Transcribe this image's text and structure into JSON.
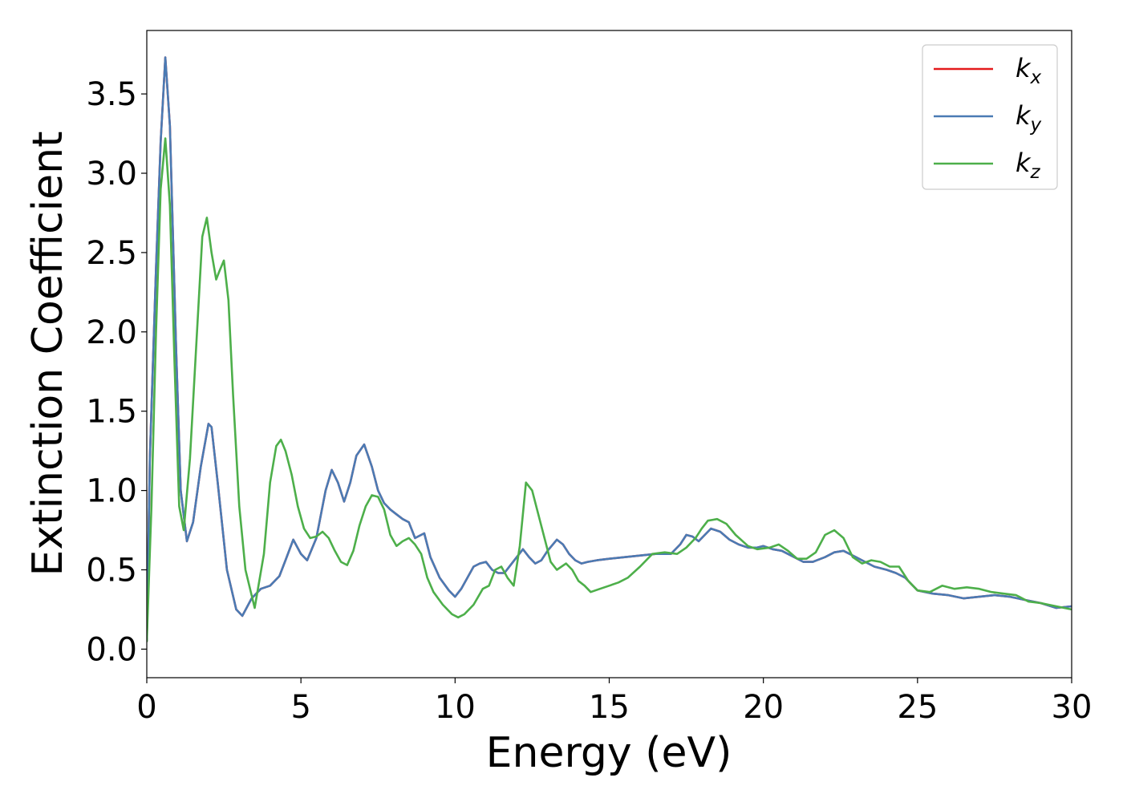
{
  "chart_data": {
    "type": "line",
    "xlabel": "Energy (eV)",
    "ylabel": "Extinction Coefficient",
    "xlim": [
      0,
      30
    ],
    "ylim": [
      -0.18,
      3.9
    ],
    "xticks": [
      0,
      5,
      10,
      15,
      20,
      25,
      30
    ],
    "xtick_labels": [
      "0",
      "5",
      "10",
      "15",
      "20",
      "25",
      "30"
    ],
    "yticks": [
      0.0,
      0.5,
      1.0,
      1.5,
      2.0,
      2.5,
      3.0,
      3.5
    ],
    "ytick_labels": [
      "0.0",
      "0.5",
      "1.0",
      "1.5",
      "2.0",
      "2.5",
      "3.0",
      "3.5"
    ],
    "grid": false,
    "legend_position": "top-right",
    "series": [
      {
        "name": "k_x",
        "label_base": "k",
        "label_sub": "x",
        "color": "#e41a1c",
        "x": [
          0.0,
          0.1,
          0.3,
          0.45,
          0.6,
          0.75,
          0.95,
          1.1,
          1.3,
          1.5,
          1.75,
          2.0,
          2.1,
          2.3,
          2.6,
          2.9,
          3.1,
          3.4,
          3.7,
          4.0,
          4.3,
          4.5,
          4.75,
          5.0,
          5.2,
          5.5,
          5.8,
          6.0,
          6.2,
          6.4,
          6.6,
          6.8,
          7.05,
          7.3,
          7.5,
          7.7,
          7.9,
          8.1,
          8.3,
          8.5,
          8.7,
          9.0,
          9.2,
          9.5,
          9.8,
          10.0,
          10.2,
          10.4,
          10.6,
          10.8,
          11.0,
          11.2,
          11.4,
          11.6,
          11.8,
          12.0,
          12.2,
          12.4,
          12.6,
          12.8,
          13.0,
          13.3,
          13.5,
          13.7,
          13.9,
          14.1,
          14.3,
          14.6,
          15.0,
          15.5,
          16.0,
          16.5,
          17.0,
          17.3,
          17.5,
          17.7,
          17.9,
          18.1,
          18.3,
          18.6,
          18.9,
          19.2,
          19.5,
          19.8,
          20.0,
          20.3,
          20.6,
          21.0,
          21.3,
          21.6,
          22.0,
          22.3,
          22.6,
          23.0,
          23.3,
          23.6,
          24.0,
          24.3,
          24.6,
          25.0,
          25.5,
          26.0,
          26.5,
          27.0,
          27.5,
          28.0,
          28.5,
          29.0,
          29.5,
          30.0
        ],
        "y": [
          0.05,
          1.2,
          2.4,
          3.2,
          3.73,
          3.3,
          1.9,
          1.0,
          0.68,
          0.8,
          1.15,
          1.42,
          1.4,
          1.05,
          0.5,
          0.25,
          0.21,
          0.32,
          0.38,
          0.4,
          0.46,
          0.56,
          0.69,
          0.6,
          0.56,
          0.7,
          1.0,
          1.13,
          1.05,
          0.93,
          1.05,
          1.22,
          1.29,
          1.15,
          1.0,
          0.92,
          0.88,
          0.85,
          0.82,
          0.8,
          0.7,
          0.73,
          0.58,
          0.45,
          0.37,
          0.33,
          0.38,
          0.45,
          0.52,
          0.54,
          0.55,
          0.5,
          0.48,
          0.48,
          0.53,
          0.58,
          0.63,
          0.58,
          0.54,
          0.56,
          0.62,
          0.69,
          0.66,
          0.6,
          0.56,
          0.54,
          0.55,
          0.56,
          0.57,
          0.58,
          0.59,
          0.6,
          0.6,
          0.66,
          0.72,
          0.71,
          0.68,
          0.72,
          0.76,
          0.74,
          0.69,
          0.66,
          0.64,
          0.64,
          0.65,
          0.63,
          0.62,
          0.58,
          0.55,
          0.55,
          0.58,
          0.61,
          0.62,
          0.58,
          0.55,
          0.52,
          0.5,
          0.48,
          0.45,
          0.37,
          0.35,
          0.34,
          0.32,
          0.33,
          0.34,
          0.33,
          0.31,
          0.29,
          0.26,
          0.27
        ]
      },
      {
        "name": "k_y",
        "label_base": "k",
        "label_sub": "y",
        "color": "#4a7bb4",
        "x": [
          0.0,
          0.1,
          0.3,
          0.45,
          0.6,
          0.75,
          0.95,
          1.1,
          1.3,
          1.5,
          1.75,
          2.0,
          2.1,
          2.3,
          2.6,
          2.9,
          3.1,
          3.4,
          3.7,
          4.0,
          4.3,
          4.5,
          4.75,
          5.0,
          5.2,
          5.5,
          5.8,
          6.0,
          6.2,
          6.4,
          6.6,
          6.8,
          7.05,
          7.3,
          7.5,
          7.7,
          7.9,
          8.1,
          8.3,
          8.5,
          8.7,
          9.0,
          9.2,
          9.5,
          9.8,
          10.0,
          10.2,
          10.4,
          10.6,
          10.8,
          11.0,
          11.2,
          11.4,
          11.6,
          11.8,
          12.0,
          12.2,
          12.4,
          12.6,
          12.8,
          13.0,
          13.3,
          13.5,
          13.7,
          13.9,
          14.1,
          14.3,
          14.6,
          15.0,
          15.5,
          16.0,
          16.5,
          17.0,
          17.3,
          17.5,
          17.7,
          17.9,
          18.1,
          18.3,
          18.6,
          18.9,
          19.2,
          19.5,
          19.8,
          20.0,
          20.3,
          20.6,
          21.0,
          21.3,
          21.6,
          22.0,
          22.3,
          22.6,
          23.0,
          23.3,
          23.6,
          24.0,
          24.3,
          24.6,
          25.0,
          25.5,
          26.0,
          26.5,
          27.0,
          27.5,
          28.0,
          28.5,
          29.0,
          29.5,
          30.0
        ],
        "y": [
          0.05,
          1.2,
          2.4,
          3.2,
          3.73,
          3.3,
          1.9,
          1.0,
          0.68,
          0.8,
          1.15,
          1.42,
          1.4,
          1.05,
          0.5,
          0.25,
          0.21,
          0.32,
          0.38,
          0.4,
          0.46,
          0.56,
          0.69,
          0.6,
          0.56,
          0.7,
          1.0,
          1.13,
          1.05,
          0.93,
          1.05,
          1.22,
          1.29,
          1.15,
          1.0,
          0.92,
          0.88,
          0.85,
          0.82,
          0.8,
          0.7,
          0.73,
          0.58,
          0.45,
          0.37,
          0.33,
          0.38,
          0.45,
          0.52,
          0.54,
          0.55,
          0.5,
          0.48,
          0.48,
          0.53,
          0.58,
          0.63,
          0.58,
          0.54,
          0.56,
          0.62,
          0.69,
          0.66,
          0.6,
          0.56,
          0.54,
          0.55,
          0.56,
          0.57,
          0.58,
          0.59,
          0.6,
          0.6,
          0.66,
          0.72,
          0.71,
          0.68,
          0.72,
          0.76,
          0.74,
          0.69,
          0.66,
          0.64,
          0.64,
          0.65,
          0.63,
          0.62,
          0.58,
          0.55,
          0.55,
          0.58,
          0.61,
          0.62,
          0.58,
          0.55,
          0.52,
          0.5,
          0.48,
          0.45,
          0.37,
          0.35,
          0.34,
          0.32,
          0.33,
          0.34,
          0.33,
          0.31,
          0.29,
          0.26,
          0.27
        ]
      },
      {
        "name": "k_z",
        "label_base": "k",
        "label_sub": "z",
        "color": "#4daf4a",
        "x": [
          0.0,
          0.15,
          0.3,
          0.45,
          0.6,
          0.75,
          0.9,
          1.05,
          1.2,
          1.4,
          1.6,
          1.8,
          1.95,
          2.1,
          2.25,
          2.35,
          2.5,
          2.65,
          2.8,
          3.0,
          3.2,
          3.5,
          3.8,
          4.0,
          4.2,
          4.35,
          4.5,
          4.7,
          4.9,
          5.1,
          5.3,
          5.5,
          5.7,
          5.9,
          6.1,
          6.3,
          6.5,
          6.7,
          6.9,
          7.1,
          7.3,
          7.5,
          7.7,
          7.9,
          8.1,
          8.3,
          8.5,
          8.7,
          8.9,
          9.1,
          9.3,
          9.6,
          9.9,
          10.1,
          10.3,
          10.6,
          10.9,
          11.1,
          11.3,
          11.5,
          11.7,
          11.9,
          12.1,
          12.3,
          12.5,
          12.7,
          12.9,
          13.1,
          13.3,
          13.6,
          13.8,
          14.0,
          14.2,
          14.4,
          14.7,
          15.0,
          15.3,
          15.6,
          16.0,
          16.4,
          16.8,
          17.2,
          17.5,
          17.8,
          18.0,
          18.2,
          18.5,
          18.8,
          19.1,
          19.5,
          19.8,
          20.2,
          20.5,
          20.8,
          21.1,
          21.4,
          21.7,
          22.0,
          22.3,
          22.6,
          22.9,
          23.2,
          23.5,
          23.8,
          24.1,
          24.4,
          24.7,
          25.0,
          25.4,
          25.8,
          26.2,
          26.6,
          27.0,
          27.4,
          27.8,
          28.2,
          28.6,
          29.0,
          29.5,
          30.0
        ],
        "y": [
          0.05,
          0.9,
          2.0,
          2.9,
          3.22,
          2.8,
          1.8,
          0.9,
          0.75,
          1.2,
          1.9,
          2.6,
          2.72,
          2.5,
          2.33,
          2.38,
          2.45,
          2.2,
          1.6,
          0.9,
          0.5,
          0.26,
          0.6,
          1.05,
          1.28,
          1.32,
          1.25,
          1.1,
          0.9,
          0.76,
          0.7,
          0.71,
          0.74,
          0.7,
          0.62,
          0.55,
          0.53,
          0.62,
          0.78,
          0.9,
          0.97,
          0.96,
          0.88,
          0.72,
          0.65,
          0.68,
          0.7,
          0.66,
          0.6,
          0.45,
          0.36,
          0.28,
          0.22,
          0.2,
          0.22,
          0.28,
          0.38,
          0.4,
          0.5,
          0.52,
          0.45,
          0.4,
          0.65,
          1.05,
          1.0,
          0.85,
          0.7,
          0.55,
          0.5,
          0.54,
          0.5,
          0.43,
          0.4,
          0.36,
          0.38,
          0.4,
          0.42,
          0.45,
          0.52,
          0.6,
          0.61,
          0.6,
          0.64,
          0.7,
          0.76,
          0.81,
          0.82,
          0.79,
          0.72,
          0.65,
          0.63,
          0.64,
          0.66,
          0.62,
          0.57,
          0.57,
          0.61,
          0.72,
          0.75,
          0.7,
          0.58,
          0.54,
          0.56,
          0.55,
          0.52,
          0.52,
          0.43,
          0.37,
          0.36,
          0.4,
          0.38,
          0.39,
          0.38,
          0.36,
          0.35,
          0.34,
          0.3,
          0.29,
          0.27,
          0.25
        ]
      }
    ]
  }
}
